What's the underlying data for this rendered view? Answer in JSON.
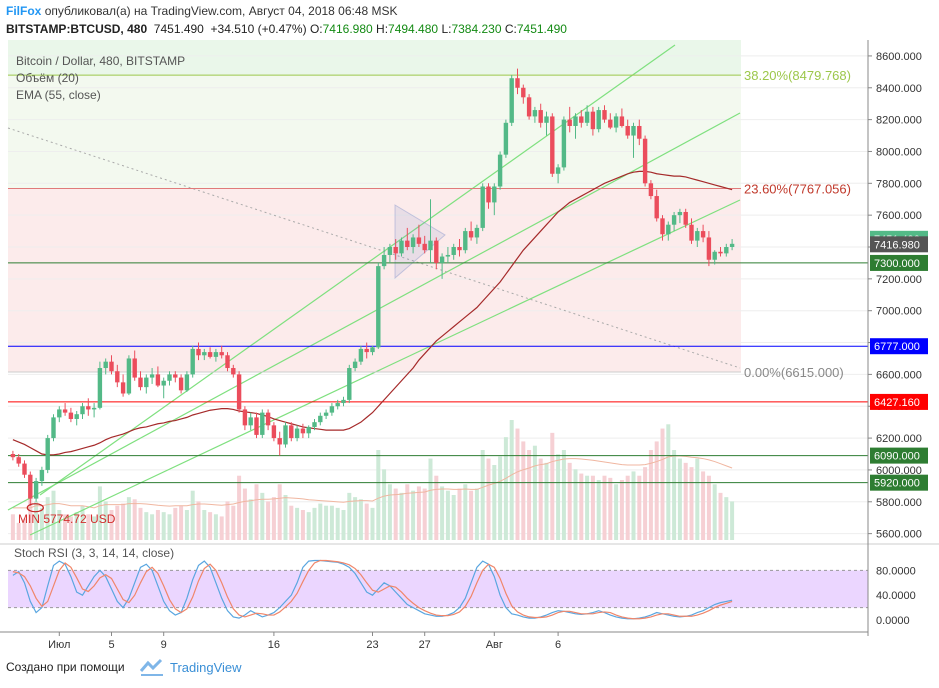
{
  "header": {
    "brand": "FilFox",
    "published_text": "опубликовал(а) на TradingView.com, Август 04, 2018 06:48 MSK",
    "symbol": "BITSTAMP:BTCUSD, 480",
    "last": "7451.490",
    "change": "+34.510 (+0.47%)",
    "o_label": "O:",
    "o_value": "7416.980",
    "h_label": "H:",
    "h_value": "7494.480",
    "l_label": "L:",
    "l_value": "7384.230",
    "c_label": "C:",
    "c_value": "7451.490"
  },
  "legend": {
    "title": "Bitcoin / Dollar, 480, BITSTAMP",
    "volume": "Объём (20)",
    "ema": "EMA (55, close)",
    "stoch": "Stoch RSI (3, 3, 14, 14, close)"
  },
  "footer": {
    "made_with": "Создано при помощи",
    "brand": "TradingView"
  },
  "colors": {
    "up": "#53b987",
    "down": "#eb4d5c",
    "ema": "#a52a2a",
    "channel": "#7fe07f",
    "fib_top": "#9cc74a",
    "fib_mid": "#e07a7a",
    "blue_level": "#0000ff",
    "red_level": "#ff0000",
    "green_level": "#2e7d32",
    "stoch_k": "#5aa6e0",
    "stoch_d": "#f0866a",
    "stoch_band": "#e6ccff"
  },
  "chart_data": {
    "type": "candlestick",
    "title": "Bitcoin / Dollar, 480, BITSTAMP",
    "ylim": [
      5560,
      8700
    ],
    "y_ticks": [
      5600,
      5800,
      6000,
      6200,
      6400,
      6600,
      6800,
      7000,
      7200,
      7400,
      7600,
      7800,
      8000,
      8200,
      8400,
      8600
    ],
    "x_ticks": [
      "Июл",
      "5",
      "9",
      "16",
      "23",
      "27",
      "Авг",
      "6"
    ],
    "candles": [
      [
        6100,
        6120,
        6060,
        6080
      ],
      [
        6080,
        6100,
        6020,
        6040
      ],
      [
        6040,
        6060,
        5950,
        5970
      ],
      [
        5970,
        5990,
        5775,
        5820
      ],
      [
        5820,
        5950,
        5800,
        5930
      ],
      [
        5930,
        6020,
        5900,
        6000
      ],
      [
        6000,
        6220,
        5980,
        6200
      ],
      [
        6200,
        6350,
        6180,
        6330
      ],
      [
        6330,
        6400,
        6300,
        6380
      ],
      [
        6380,
        6420,
        6340,
        6360
      ],
      [
        6360,
        6390,
        6300,
        6320
      ],
      [
        6320,
        6370,
        6280,
        6350
      ],
      [
        6350,
        6420,
        6320,
        6400
      ],
      [
        6400,
        6450,
        6340,
        6380
      ],
      [
        6380,
        6420,
        6330,
        6390
      ],
      [
        6390,
        6680,
        6380,
        6640
      ],
      [
        6640,
        6700,
        6600,
        6680
      ],
      [
        6680,
        6720,
        6600,
        6620
      ],
      [
        6620,
        6660,
        6520,
        6550
      ],
      [
        6550,
        6600,
        6460,
        6480
      ],
      [
        6480,
        6720,
        6470,
        6700
      ],
      [
        6700,
        6750,
        6560,
        6580
      ],
      [
        6580,
        6620,
        6500,
        6520
      ],
      [
        6520,
        6600,
        6480,
        6580
      ],
      [
        6580,
        6640,
        6540,
        6600
      ],
      [
        6600,
        6650,
        6520,
        6530
      ],
      [
        6530,
        6580,
        6450,
        6560
      ],
      [
        6560,
        6620,
        6530,
        6600
      ],
      [
        6600,
        6620,
        6550,
        6580
      ],
      [
        6580,
        6600,
        6480,
        6500
      ],
      [
        6500,
        6620,
        6490,
        6600
      ],
      [
        6600,
        6780,
        6580,
        6760
      ],
      [
        6760,
        6800,
        6690,
        6720
      ],
      [
        6720,
        6760,
        6690,
        6740
      ],
      [
        6740,
        6770,
        6700,
        6710
      ],
      [
        6710,
        6760,
        6680,
        6740
      ],
      [
        6740,
        6780,
        6700,
        6720
      ],
      [
        6720,
        6740,
        6620,
        6640
      ],
      [
        6640,
        6660,
        6580,
        6600
      ],
      [
        6600,
        6620,
        6360,
        6380
      ],
      [
        6380,
        6400,
        6250,
        6280
      ],
      [
        6280,
        6360,
        6250,
        6330
      ],
      [
        6330,
        6360,
        6200,
        6220
      ],
      [
        6220,
        6380,
        6200,
        6360
      ],
      [
        6360,
        6380,
        6250,
        6280
      ],
      [
        6280,
        6300,
        6180,
        6200
      ],
      [
        6200,
        6240,
        6090,
        6160
      ],
      [
        6160,
        6300,
        6140,
        6280
      ],
      [
        6280,
        6300,
        6180,
        6200
      ],
      [
        6200,
        6280,
        6180,
        6260
      ],
      [
        6260,
        6290,
        6200,
        6230
      ],
      [
        6230,
        6280,
        6200,
        6270
      ],
      [
        6270,
        6320,
        6250,
        6300
      ],
      [
        6300,
        6360,
        6280,
        6340
      ],
      [
        6340,
        6380,
        6320,
        6360
      ],
      [
        6360,
        6420,
        6340,
        6400
      ],
      [
        6400,
        6440,
        6380,
        6420
      ],
      [
        6420,
        6460,
        6400,
        6440
      ],
      [
        6440,
        6660,
        6420,
        6640
      ],
      [
        6640,
        6700,
        6620,
        6680
      ],
      [
        6680,
        6780,
        6660,
        6760
      ],
      [
        6760,
        6800,
        6700,
        6740
      ],
      [
        6740,
        6780,
        6720,
        6770
      ],
      [
        6770,
        7300,
        6760,
        7280
      ],
      [
        7280,
        7400,
        7260,
        7350
      ],
      [
        7350,
        7420,
        7300,
        7400
      ],
      [
        7400,
        7450,
        7320,
        7360
      ],
      [
        7360,
        7460,
        7340,
        7440
      ],
      [
        7440,
        7520,
        7380,
        7400
      ],
      [
        7400,
        7480,
        7360,
        7460
      ],
      [
        7460,
        7540,
        7400,
        7420
      ],
      [
        7420,
        7470,
        7360,
        7380
      ],
      [
        7380,
        7700,
        7300,
        7440
      ],
      [
        7440,
        7460,
        7260,
        7300
      ],
      [
        7300,
        7360,
        7200,
        7340
      ],
      [
        7340,
        7400,
        7300,
        7350
      ],
      [
        7350,
        7420,
        7320,
        7400
      ],
      [
        7400,
        7450,
        7340,
        7380
      ],
      [
        7380,
        7520,
        7360,
        7500
      ],
      [
        7500,
        7560,
        7440,
        7460
      ],
      [
        7460,
        7540,
        7420,
        7520
      ],
      [
        7520,
        7800,
        7500,
        7780
      ],
      [
        7780,
        7800,
        7640,
        7680
      ],
      [
        7680,
        7800,
        7600,
        7780
      ],
      [
        7780,
        8000,
        7760,
        7980
      ],
      [
        7980,
        8200,
        7960,
        8180
      ],
      [
        8180,
        8480,
        8160,
        8460
      ],
      [
        8460,
        8520,
        8360,
        8400
      ],
      [
        8400,
        8420,
        8300,
        8340
      ],
      [
        8340,
        8360,
        8200,
        8220
      ],
      [
        8220,
        8280,
        8180,
        8260
      ],
      [
        8260,
        8300,
        8150,
        8180
      ],
      [
        8180,
        8250,
        8100,
        8220
      ],
      [
        8220,
        8240,
        7840,
        7860
      ],
      [
        7860,
        7920,
        7800,
        7900
      ],
      [
        7900,
        8220,
        7880,
        8200
      ],
      [
        8200,
        8280,
        8120,
        8160
      ],
      [
        8160,
        8240,
        8080,
        8220
      ],
      [
        8220,
        8260,
        8150,
        8180
      ],
      [
        8180,
        8290,
        8160,
        8250
      ],
      [
        8250,
        8280,
        8100,
        8140
      ],
      [
        8140,
        8280,
        8120,
        8260
      ],
      [
        8260,
        8290,
        8180,
        8200
      ],
      [
        8200,
        8240,
        8140,
        8150
      ],
      [
        8150,
        8240,
        8120,
        8220
      ],
      [
        8220,
        8270,
        8150,
        8160
      ],
      [
        8160,
        8200,
        8080,
        8100
      ],
      [
        8100,
        8180,
        7960,
        8160
      ],
      [
        8160,
        8200,
        8040,
        8080
      ],
      [
        8080,
        8100,
        7780,
        7800
      ],
      [
        7800,
        7820,
        7700,
        7720
      ],
      [
        7720,
        7760,
        7560,
        7580
      ],
      [
        7580,
        7600,
        7440,
        7480
      ],
      [
        7480,
        7560,
        7440,
        7540
      ],
      [
        7540,
        7620,
        7500,
        7600
      ],
      [
        7600,
        7640,
        7550,
        7620
      ],
      [
        7620,
        7640,
        7520,
        7540
      ],
      [
        7540,
        7580,
        7420,
        7440
      ],
      [
        7440,
        7520,
        7400,
        7500
      ],
      [
        7500,
        7540,
        7430,
        7460
      ],
      [
        7460,
        7500,
        7280,
        7320
      ],
      [
        7320,
        7380,
        7290,
        7370
      ],
      [
        7370,
        7400,
        7340,
        7360
      ],
      [
        7360,
        7420,
        7340,
        7400
      ],
      [
        7400,
        7450,
        7380,
        7420
      ]
    ],
    "ema": [
      6190,
      6175,
      6160,
      6140,
      6120,
      6100,
      6095,
      6095,
      6100,
      6110,
      6115,
      6125,
      6135,
      6145,
      6155,
      6170,
      6190,
      6205,
      6215,
      6225,
      6240,
      6255,
      6265,
      6270,
      6280,
      6290,
      6295,
      6305,
      6310,
      6320,
      6330,
      6345,
      6355,
      6365,
      6375,
      6380,
      6385,
      6385,
      6380,
      6370,
      6365,
      6360,
      6355,
      6345,
      6335,
      6320,
      6310,
      6300,
      6290,
      6280,
      6270,
      6265,
      6260,
      6255,
      6250,
      6250,
      6250,
      6250,
      6260,
      6280,
      6300,
      6330,
      6360,
      6400,
      6440,
      6480,
      6520,
      6560,
      6600,
      6640,
      6690,
      6730,
      6770,
      6810,
      6840,
      6870,
      6900,
      6930,
      6960,
      6990,
      7020,
      7060,
      7100,
      7140,
      7180,
      7230,
      7280,
      7330,
      7380,
      7420,
      7460,
      7500,
      7540,
      7580,
      7620,
      7650,
      7680,
      7700,
      7720,
      7740,
      7760,
      7780,
      7800,
      7815,
      7830,
      7845,
      7860,
      7870,
      7875,
      7875,
      7870,
      7860,
      7855,
      7850,
      7845,
      7845,
      7840,
      7830,
      7820,
      7810,
      7800,
      7790,
      7780,
      7770,
      7760
    ],
    "volume": [
      120,
      80,
      100,
      260,
      180,
      150,
      200,
      230,
      140,
      120,
      110,
      130,
      160,
      120,
      110,
      250,
      180,
      140,
      160,
      170,
      200,
      190,
      150,
      130,
      120,
      140,
      130,
      120,
      150,
      160,
      140,
      230,
      180,
      140,
      130,
      120,
      110,
      180,
      160,
      300,
      240,
      190,
      260,
      220,
      180,
      200,
      260,
      210,
      160,
      150,
      140,
      130,
      150,
      170,
      160,
      160,
      150,
      140,
      220,
      200,
      190,
      170,
      150,
      420,
      330,
      260,
      240,
      220,
      260,
      230,
      250,
      240,
      380,
      300,
      250,
      230,
      210,
      240,
      260,
      230,
      240,
      420,
      380,
      350,
      390,
      480,
      560,
      520,
      460,
      420,
      440,
      380,
      360,
      500,
      400,
      420,
      360,
      330,
      310,
      300,
      300,
      280,
      300,
      290,
      260,
      280,
      300,
      320,
      300,
      340,
      420,
      460,
      520,
      540,
      420,
      380,
      360,
      340,
      380,
      320,
      300,
      260,
      220,
      200,
      180
    ],
    "volume_ma": [
      150,
      150,
      150,
      150,
      160,
      160,
      165,
      170,
      170,
      165,
      160,
      160,
      160,
      155,
      150,
      160,
      165,
      165,
      165,
      165,
      170,
      170,
      170,
      168,
      165,
      162,
      160,
      158,
      160,
      160,
      160,
      165,
      168,
      168,
      166,
      164,
      162,
      165,
      168,
      175,
      180,
      183,
      188,
      190,
      190,
      192,
      195,
      198,
      196,
      194,
      192,
      188,
      186,
      184,
      182,
      180,
      178,
      176,
      180,
      182,
      184,
      184,
      182,
      195,
      205,
      210,
      212,
      214,
      218,
      220,
      222,
      224,
      232,
      236,
      238,
      238,
      236,
      236,
      238,
      236,
      236,
      246,
      256,
      264,
      274,
      288,
      304,
      318,
      328,
      336,
      346,
      352,
      356,
      366,
      372,
      378,
      380,
      380,
      378,
      375,
      372,
      368,
      364,
      360,
      356,
      352,
      350,
      350,
      350,
      352,
      358,
      366,
      376,
      388,
      392,
      392,
      390,
      386,
      384,
      380,
      374,
      366,
      356,
      346,
      336
    ],
    "stoch_k": [
      72,
      78,
      60,
      30,
      12,
      20,
      55,
      88,
      95,
      90,
      70,
      45,
      40,
      55,
      70,
      80,
      70,
      50,
      30,
      20,
      35,
      60,
      85,
      90,
      80,
      55,
      30,
      15,
      8,
      12,
      35,
      65,
      88,
      95,
      85,
      60,
      35,
      15,
      5,
      3,
      8,
      15,
      10,
      5,
      8,
      12,
      20,
      30,
      40,
      60,
      85,
      95,
      96,
      96,
      95,
      94,
      93,
      90,
      85,
      75,
      60,
      45,
      40,
      50,
      60,
      55,
      45,
      35,
      25,
      20,
      15,
      10,
      8,
      6,
      6,
      8,
      12,
      20,
      35,
      60,
      85,
      95,
      90,
      70,
      40,
      20,
      10,
      8,
      5,
      3,
      3,
      5,
      8,
      12,
      15,
      14,
      12,
      10,
      9,
      10,
      12,
      15,
      12,
      8,
      5,
      3,
      2,
      2,
      3,
      5,
      8,
      12,
      10,
      8,
      6,
      5,
      6,
      8,
      12,
      15,
      20,
      25,
      28,
      30,
      32
    ],
    "stoch_d": [
      78,
      76,
      70,
      55,
      35,
      22,
      30,
      55,
      80,
      92,
      85,
      68,
      50,
      46,
      55,
      68,
      73,
      67,
      50,
      33,
      28,
      40,
      60,
      78,
      85,
      75,
      55,
      33,
      18,
      12,
      18,
      37,
      63,
      83,
      90,
      80,
      60,
      37,
      18,
      8,
      5,
      8,
      11,
      10,
      8,
      8,
      13,
      21,
      30,
      43,
      62,
      80,
      92,
      96,
      96,
      95,
      94,
      92,
      89,
      83,
      73,
      60,
      48,
      45,
      50,
      55,
      53,
      45,
      35,
      27,
      20,
      15,
      11,
      8,
      7,
      7,
      9,
      13,
      22,
      38,
      60,
      80,
      90,
      85,
      67,
      43,
      23,
      13,
      8,
      5,
      4,
      4,
      5,
      8,
      12,
      14,
      14,
      12,
      10,
      10,
      10,
      12,
      13,
      12,
      8,
      5,
      3,
      2,
      2,
      3,
      5,
      8,
      10,
      10,
      8,
      6,
      6,
      6,
      8,
      11,
      15,
      20,
      24,
      27,
      30
    ],
    "stoch_ticks": [
      0,
      40,
      80
    ],
    "fib_levels": [
      {
        "label": "38.20%(8479.768)",
        "value": 8479.768
      },
      {
        "label": "23.60%(7767.056)",
        "value": 7767.056
      },
      {
        "label": "0.00%(6615.000)",
        "value": 6615.0
      }
    ],
    "levels": [
      {
        "value": 6777,
        "label": "6777.000",
        "color": "#0000ff"
      },
      {
        "value": 6427.16,
        "label": "6427.160",
        "color": "#ff0000"
      },
      {
        "value": 7300,
        "label": "7300.000",
        "color": "#2e7d32"
      },
      {
        "value": 6090,
        "label": "6090.000",
        "color": "#2e7d32"
      },
      {
        "value": 5920,
        "label": "5920.000",
        "color": "#2e7d32"
      }
    ],
    "price_labels": [
      {
        "value": 7451.49,
        "label": "7451.490",
        "color": "#53b987"
      },
      {
        "value": 7416.98,
        "label": "7416.980",
        "color": "#555555"
      }
    ],
    "annotation_min": "MIN 5774.72 USD"
  }
}
